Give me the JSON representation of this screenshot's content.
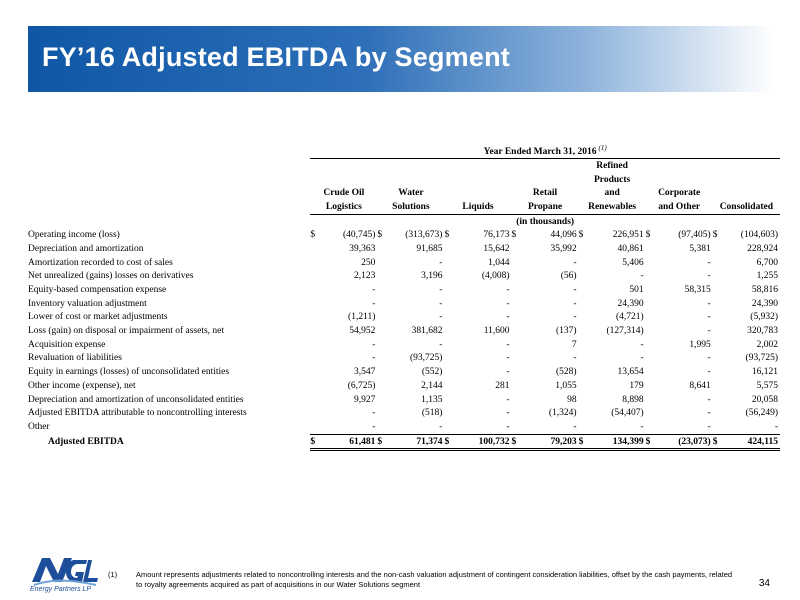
{
  "header": {
    "title": "FY’16 Adjusted EBITDA by Segment"
  },
  "table": {
    "period": "Year Ended March 31, 2016",
    "period_note": "(1)",
    "columns": [
      {
        "l1": "",
        "l2": "",
        "l3": "Crude Oil",
        "l4": "Logistics"
      },
      {
        "l1": "",
        "l2": "",
        "l3": "Water",
        "l4": "Solutions"
      },
      {
        "l1": "",
        "l2": "",
        "l3": "",
        "l4": "Liquids"
      },
      {
        "l1": "",
        "l2": "",
        "l3": "Retail",
        "l4": "Propane"
      },
      {
        "l1": "Refined",
        "l2": "Products",
        "l3": "and",
        "l4": "Renewables"
      },
      {
        "l1": "",
        "l2": "",
        "l3": "Corporate",
        "l4": "and Other"
      },
      {
        "l1": "",
        "l2": "",
        "l3": "",
        "l4": "Consolidated"
      }
    ],
    "units": "(in thousands)",
    "rows": [
      {
        "label": "Operating income (loss)",
        "dollar": true,
        "values": [
          "(40,745)",
          "(313,673)",
          "76,173",
          "44,096",
          "226,951",
          "(97,405)",
          "(104,603)"
        ]
      },
      {
        "label": "Depreciation and amortization",
        "values": [
          "39,363",
          "91,685",
          "15,642",
          "35,992",
          "40,861",
          "5,381",
          "228,924"
        ]
      },
      {
        "label": "Amortization recorded to cost of sales",
        "values": [
          "250",
          "-",
          "1,044",
          "-",
          "5,406",
          "-",
          "6,700"
        ]
      },
      {
        "label": "Net unrealized (gains) losses on derivatives",
        "values": [
          "2,123",
          "3,196",
          "(4,008)",
          "(56)",
          "-",
          "-",
          "1,255"
        ]
      },
      {
        "label": "Equity-based compensation expense",
        "values": [
          "-",
          "-",
          "-",
          "-",
          "501",
          "58,315",
          "58,816"
        ]
      },
      {
        "label": "Inventory valuation adjustment",
        "values": [
          "-",
          "-",
          "-",
          "-",
          "24,390",
          "-",
          "24,390"
        ]
      },
      {
        "label": "Lower of cost or market adjustments",
        "values": [
          "(1,211)",
          "-",
          "-",
          "-",
          "(4,721)",
          "-",
          "(5,932)"
        ]
      },
      {
        "label": "Loss (gain) on disposal or impairment of assets, net",
        "values": [
          "54,952",
          "381,682",
          "11,600",
          "(137)",
          "(127,314)",
          "-",
          "320,783"
        ]
      },
      {
        "label": "Acquisition expense",
        "values": [
          "-",
          "-",
          "-",
          "7",
          "-",
          "1,995",
          "2,002"
        ]
      },
      {
        "label": "Revaluation of liabilities",
        "values": [
          "-",
          "(93,725)",
          "-",
          "-",
          "-",
          "-",
          "(93,725)"
        ]
      },
      {
        "label": "Equity in earnings (losses) of unconsolidated entities",
        "values": [
          "3,547",
          "(552)",
          "-",
          "(528)",
          "13,654",
          "-",
          "16,121"
        ]
      },
      {
        "label": "Other income (expense), net",
        "values": [
          "(6,725)",
          "2,144",
          "281",
          "1,055",
          "179",
          "8,641",
          "5,575"
        ]
      },
      {
        "label": "Depreciation and amortization of unconsolidated entities",
        "values": [
          "9,927",
          "1,135",
          "-",
          "98",
          "8,898",
          "-",
          "20,058"
        ]
      },
      {
        "label": "Adjusted EBITDA attributable to noncontrolling interests",
        "values": [
          "-",
          "(518)",
          "-",
          "(1,324)",
          "(54,407)",
          "-",
          "(56,249)"
        ]
      },
      {
        "label": "Other",
        "values": [
          "-",
          "-",
          "-",
          "-",
          "-",
          "-",
          "-"
        ]
      }
    ],
    "total": {
      "label": "Adjusted EBITDA",
      "dollar_sign": "$",
      "values": [
        "61,481",
        "71,374",
        "100,732",
        "79,203",
        "134,399",
        "(23,073)",
        "424,115"
      ]
    },
    "dollar_sign": "$"
  },
  "logo": {
    "brand": "NGL",
    "tagline": "Energy Partners LP",
    "brand_color": "#1d4e9a"
  },
  "footnote": {
    "number": "(1)",
    "text": "Amount represents adjustments related to noncontrolling interests and the non-cash valuation adjustment of contingent consideration liabilities, offset by the cash payments, related to royalty agreements acquired as part of acquisitions in our Water Solutions segment"
  },
  "page_number": "34"
}
